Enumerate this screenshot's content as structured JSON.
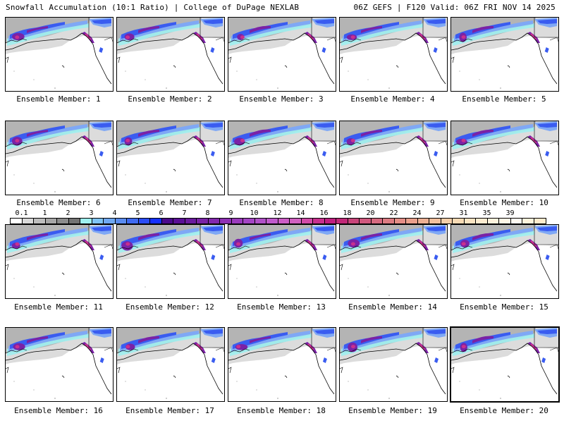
{
  "header": {
    "title": "Snowfall Accumulation (10:1 Ratio) | College of DuPage NEXLAB",
    "run_info": "06Z GEFS | F120 Valid: 06Z FRI NOV 14 2025"
  },
  "members": [
    {
      "label": "Ensemble Member: 1"
    },
    {
      "label": "Ensemble Member: 2"
    },
    {
      "label": "Ensemble Member: 3"
    },
    {
      "label": "Ensemble Member: 4"
    },
    {
      "label": "Ensemble Member: 5"
    },
    {
      "label": "Ensemble Member: 6"
    },
    {
      "label": "Ensemble Member: 7"
    },
    {
      "label": "Ensemble Member: 8"
    },
    {
      "label": "Ensemble Member: 9"
    },
    {
      "label": "Ensemble Member: 10"
    },
    {
      "label": "Ensemble Member: 11"
    },
    {
      "label": "Ensemble Member: 12"
    },
    {
      "label": "Ensemble Member: 13"
    },
    {
      "label": "Ensemble Member: 14"
    },
    {
      "label": "Ensemble Member: 15"
    },
    {
      "label": "Ensemble Member: 16"
    },
    {
      "label": "Ensemble Member: 17"
    },
    {
      "label": "Ensemble Member: 18"
    },
    {
      "label": "Ensemble Member: 19"
    },
    {
      "label": "Ensemble Member: 20"
    }
  ],
  "colorbar": {
    "ticks": [
      "0.1",
      "1",
      "2",
      "3",
      "4",
      "5",
      "6",
      "7",
      "8",
      "9",
      "10",
      "12",
      "14",
      "16",
      "18",
      "20",
      "22",
      "24",
      "27",
      "31",
      "35",
      "39"
    ],
    "colors": [
      "#ffffff",
      "#d9d9d9",
      "#bdbdbd",
      "#a6a6a6",
      "#8c8c8c",
      "#737373",
      "#9ef0f0",
      "#7fc4f5",
      "#6fa8f2",
      "#5a8cf0",
      "#3f6af0",
      "#2a4cf5",
      "#1530ff",
      "#4a0a8c",
      "#5a0f96",
      "#6a1a9e",
      "#7a22a6",
      "#8228ad",
      "#8e30b4",
      "#9a3abc",
      "#a444c4",
      "#b050c8",
      "#c05acc",
      "#cc5cc6",
      "#d060c0",
      "#d24aa8",
      "#c8308e",
      "#c01e80",
      "#c02878",
      "#c8447a",
      "#d0587e",
      "#d66a80",
      "#dc7c82",
      "#e48e86",
      "#eaa08c",
      "#eeb094",
      "#f2c09e",
      "#f6cea8",
      "#f8dab4",
      "#fbe4c2",
      "#fdecd0",
      "#fef2dc",
      "#fff6e6",
      "#fffaf0",
      "#fff4dc",
      "#ffeccd"
    ],
    "spacing_ratio": 2
  },
  "palette": {
    "gray_light": "#dcdcdc",
    "gray_mid": "#b4b4b4",
    "gray_dark": "#8c8c8c",
    "cyan": "#9ef0f0",
    "blue_light": "#7fa8f5",
    "blue": "#3a5cf0",
    "purple": "#7a22a6",
    "magenta": "#c8308e",
    "pink": "#e48e86"
  }
}
